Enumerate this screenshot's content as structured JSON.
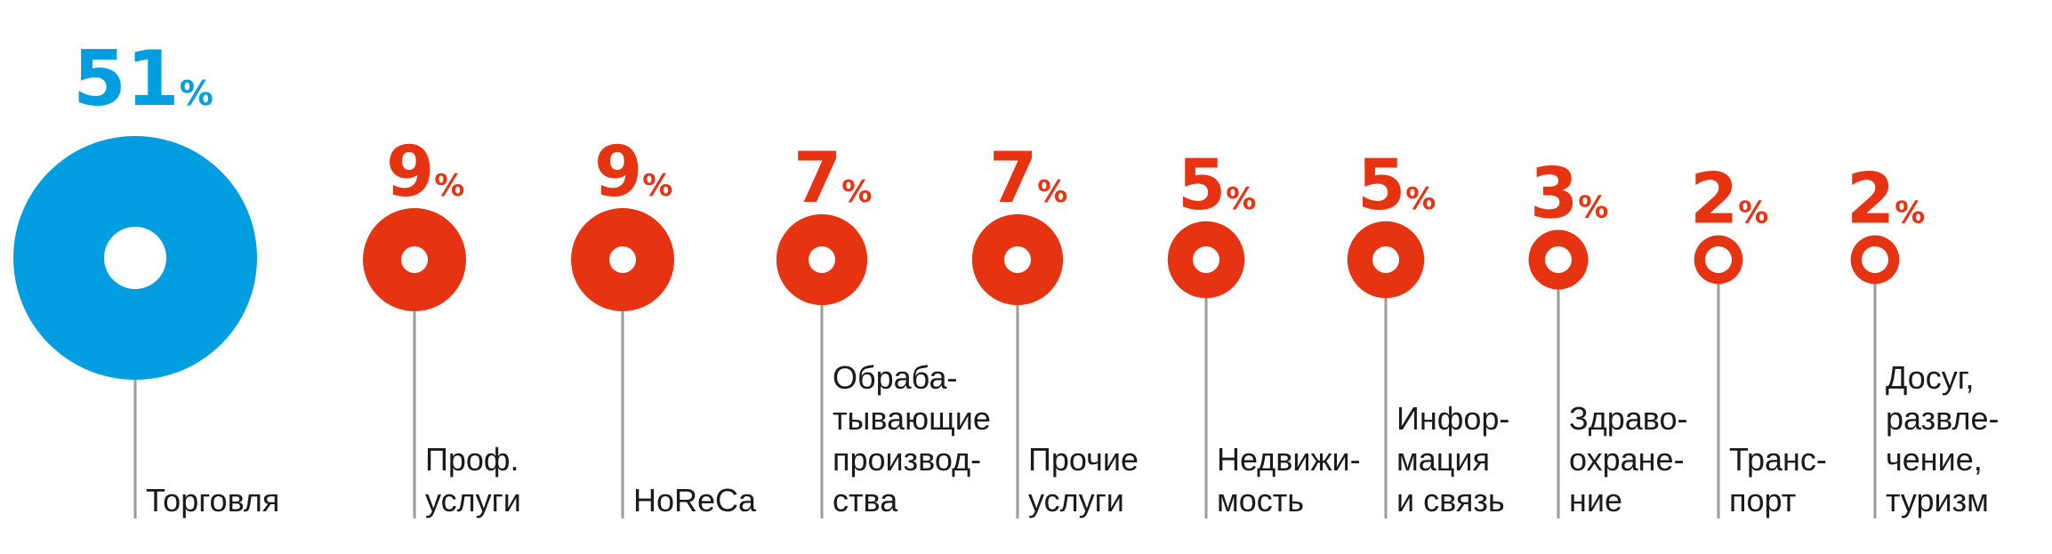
{
  "chart_data": {
    "type": "pie",
    "colors": {
      "highlight": "#009ee0",
      "default": "#e63312",
      "leader": "#9b9b9b"
    },
    "items": [
      {
        "category": [
          "Торговля"
        ],
        "value": 51,
        "highlight": true
      },
      {
        "category": [
          "Проф.",
          "услуги"
        ],
        "value": 9
      },
      {
        "category": [
          "HoReCa"
        ],
        "value": 9
      },
      {
        "category": [
          "Обраба-",
          "тывающие",
          "производ-",
          "ства"
        ],
        "value": 7
      },
      {
        "category": [
          "Прочие",
          "услуги"
        ],
        "value": 7
      },
      {
        "category": [
          "Недвижи-",
          "мость"
        ],
        "value": 5
      },
      {
        "category": [
          "Инфор-",
          "мация",
          "и связь"
        ],
        "value": 5
      },
      {
        "category": [
          "Здраво-",
          "охране-",
          "ние"
        ],
        "value": 3
      },
      {
        "category": [
          "Транс-",
          "порт"
        ],
        "value": 2
      },
      {
        "category": [
          "Досуг,",
          "развле-",
          "чение,",
          "туризм"
        ],
        "value": 2
      }
    ],
    "unit": "%"
  }
}
